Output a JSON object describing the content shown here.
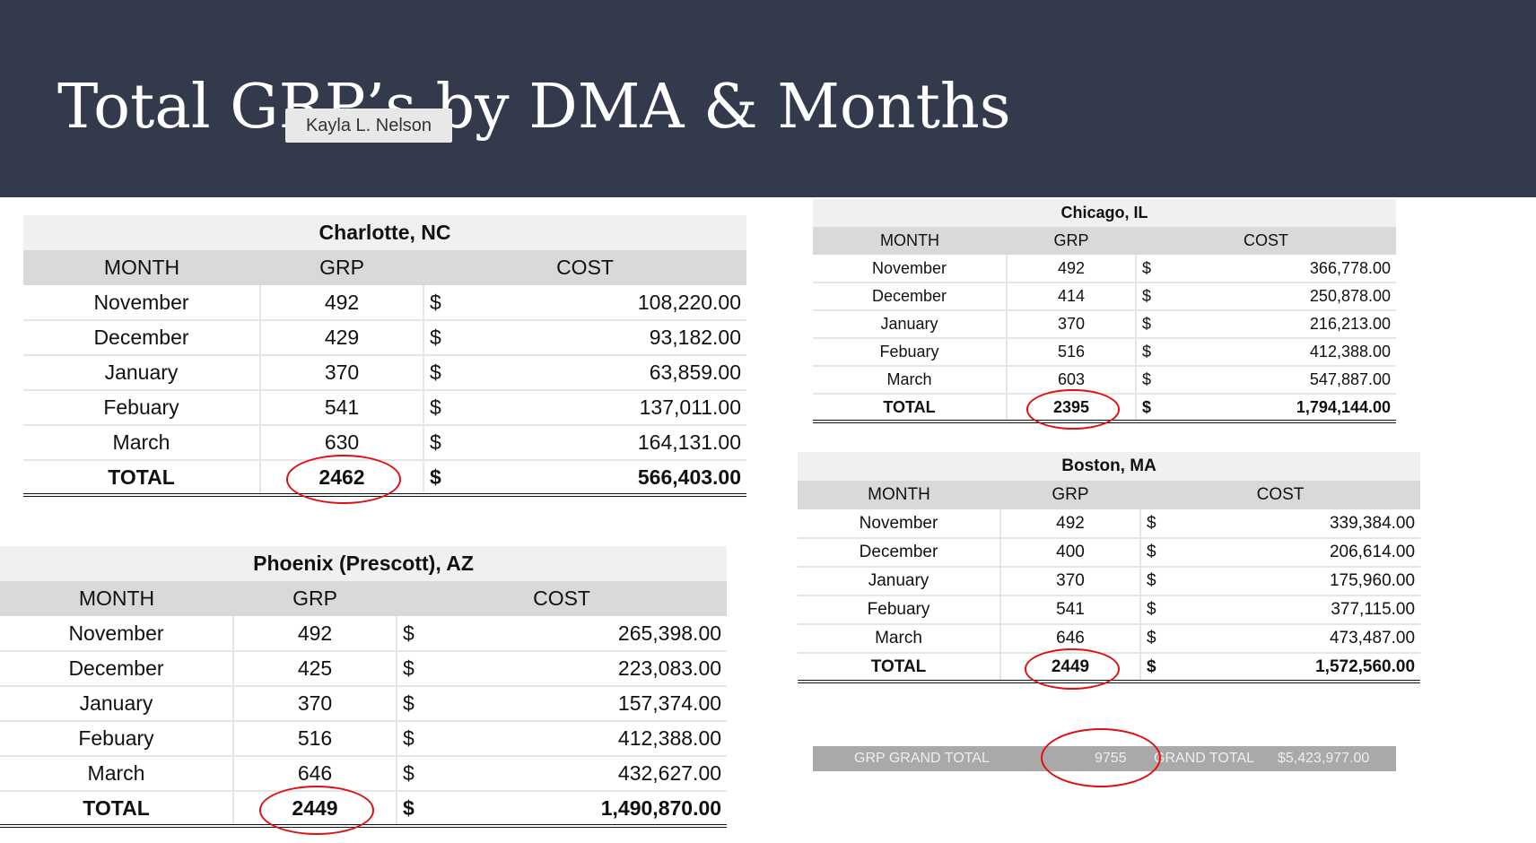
{
  "header": {
    "title": "Total GRP’s by DMA & Months",
    "tooltip": "Kayla L. Nelson"
  },
  "tables": [
    {
      "title": "Charlotte, NC",
      "columns": [
        "MONTH",
        "GRP",
        "COST"
      ],
      "rows": [
        [
          "November",
          492,
          "$",
          "108,220.00"
        ],
        [
          "December",
          429,
          "$",
          "93,182.00"
        ],
        [
          "January",
          370,
          "$",
          "63,859.00"
        ],
        [
          "Febuary",
          541,
          "$",
          "137,011.00"
        ],
        [
          "March",
          630,
          "$",
          "164,131.00"
        ],
        [
          "TOTAL",
          2462,
          "$",
          "566,403.00"
        ]
      ]
    },
    {
      "title": "Chicago, IL",
      "columns": [
        "MONTH",
        "GRP",
        "COST"
      ],
      "rows": [
        [
          "November",
          492,
          "$",
          "366,778.00"
        ],
        [
          "December",
          414,
          "$",
          "250,878.00"
        ],
        [
          "January",
          370,
          "$",
          "216,213.00"
        ],
        [
          "Febuary",
          516,
          "$",
          "412,388.00"
        ],
        [
          "March",
          603,
          "$",
          "547,887.00"
        ],
        [
          "TOTAL",
          2395,
          "$",
          "1,794,144.00"
        ]
      ]
    },
    {
      "title": "Boston, MA",
      "columns": [
        "MONTH",
        "GRP",
        "COST"
      ],
      "rows": [
        [
          "November",
          492,
          "$",
          "339,384.00"
        ],
        [
          "December",
          400,
          "$",
          "206,614.00"
        ],
        [
          "January",
          370,
          "$",
          "175,960.00"
        ],
        [
          "Febuary",
          541,
          "$",
          "377,115.00"
        ],
        [
          "March",
          646,
          "$",
          "473,487.00"
        ],
        [
          "TOTAL",
          2449,
          "$",
          "1,572,560.00"
        ]
      ]
    },
    {
      "title": "Phoenix (Prescott), AZ",
      "columns": [
        "MONTH",
        "GRP",
        "COST"
      ],
      "rows": [
        [
          "November",
          492,
          "$",
          "265,398.00"
        ],
        [
          "December",
          425,
          "$",
          "223,083.00"
        ],
        [
          "January",
          370,
          "$",
          "157,374.00"
        ],
        [
          "Febuary",
          516,
          "$",
          "412,388.00"
        ],
        [
          "March",
          646,
          "$",
          "432,627.00"
        ],
        [
          "TOTAL",
          2449,
          "$",
          "1,490,870.00"
        ]
      ]
    }
  ],
  "grand_total": {
    "grp_label": "GRP GRAND TOTAL",
    "grp_value": 9755,
    "cost_label": "GRAND TOTAL",
    "cost_value": "$5,423,977.00"
  }
}
